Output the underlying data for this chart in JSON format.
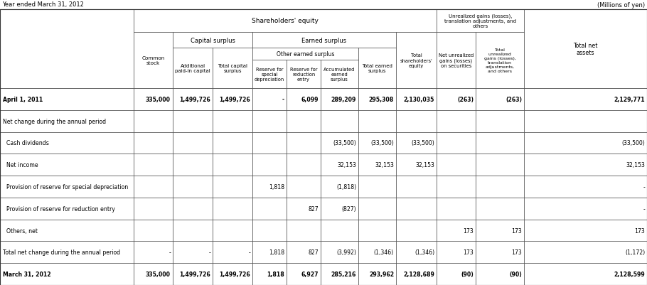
{
  "title_left": "Year ended March 31, 2012",
  "title_right": "(Millions of yen)",
  "rows": [
    {
      "label": "April 1, 2011",
      "values": [
        "335,000",
        "1,499,726",
        "1,499,726",
        "-",
        "6,099",
        "289,209",
        "295,308",
        "2,130,035",
        "(263)",
        "(263)",
        "2,129,771"
      ],
      "bold": true
    },
    {
      "label": "Net change during the annual period",
      "values": [
        "",
        "",
        "",
        "",
        "",
        "",
        "",
        "",
        "",
        "",
        ""
      ],
      "bold": false
    },
    {
      "label": "  Cash dividends",
      "values": [
        "",
        "",
        "",
        "",
        "",
        "(33,500)",
        "(33,500)",
        "(33,500)",
        "",
        "",
        "(33,500)"
      ],
      "bold": false
    },
    {
      "label": "  Net income",
      "values": [
        "",
        "",
        "",
        "",
        "",
        "32,153",
        "32,153",
        "32,153",
        "",
        "",
        "32,153"
      ],
      "bold": false
    },
    {
      "label": "  Provision of reserve for special depreciation",
      "values": [
        "",
        "",
        "",
        "1,818",
        "",
        "(1,818)",
        "",
        "",
        "",
        "",
        "-"
      ],
      "bold": false
    },
    {
      "label": "  Provision of reserve for reduction entry",
      "values": [
        "",
        "",
        "",
        "",
        "827",
        "(827)",
        "",
        "",
        "",
        "",
        "-"
      ],
      "bold": false
    },
    {
      "label": "  Others, net",
      "values": [
        "",
        "",
        "",
        "",
        "",
        "",
        "",
        "",
        "173",
        "173",
        "173"
      ],
      "bold": false
    },
    {
      "label": "Total net change during the annual period",
      "values": [
        "-",
        "-",
        "-",
        "1,818",
        "827",
        "(3,992)",
        "(1,346)",
        "(1,346)",
        "173",
        "173",
        "(1,172)"
      ],
      "bold": false
    },
    {
      "label": "March 31, 2012",
      "values": [
        "335,000",
        "1,499,726",
        "1,499,726",
        "1,818",
        "6,927",
        "285,216",
        "293,962",
        "2,128,689",
        "(90)",
        "(90)",
        "2,128,599"
      ],
      "bold": true
    }
  ],
  "col_headers_bottom": [
    "Common\nstock",
    "Additional\npaid-in capital",
    "Total capital\nsurplus",
    "Reserve for\nspecial\ndepreciation",
    "Reserve for\nreduction\nentry",
    "Accumulated\nearned\nsurplus",
    "Total earned\nsurplus",
    "Total\nshareholders'\nequity",
    "Net unrealized\ngains (losses)\non securities",
    "Total\nunrealized\ngains (losses),\ntranslation\nadjustments,\nand others",
    "Total net\nassets"
  ]
}
